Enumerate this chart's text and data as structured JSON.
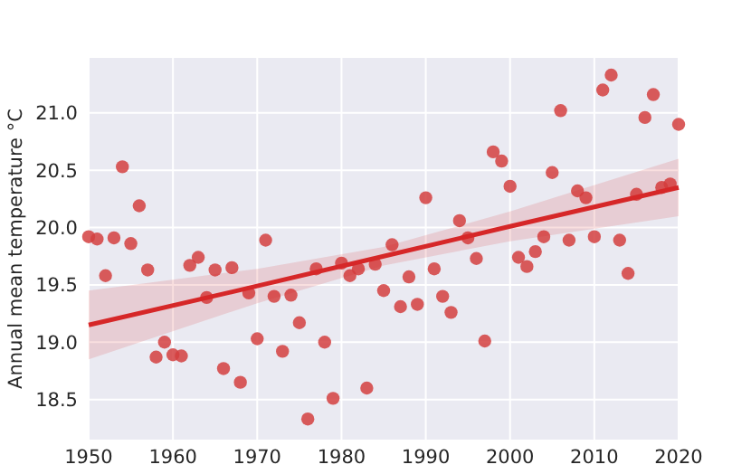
{
  "chart_data": {
    "type": "scatter",
    "ylabel": "Annual mean temperature °C",
    "xlim": [
      1950,
      2020
    ],
    "ylim": [
      18.15,
      21.48
    ],
    "xticks": [
      1950,
      1960,
      1970,
      1980,
      1990,
      2000,
      2010,
      2020
    ],
    "yticks": [
      18.5,
      {
        "value": 19,
        "label": "19.0"
      },
      19.5,
      {
        "value": 20,
        "label": "20.0"
      },
      20.5,
      {
        "value": 21,
        "label": "21.0"
      }
    ],
    "grid": true,
    "marker": "circle",
    "series": [
      {
        "color": "#d43f3f",
        "x": [
          1950,
          1951,
          1952,
          1953,
          1954,
          1955,
          1956,
          1957,
          1958,
          1959,
          1960,
          1961,
          1962,
          1963,
          1964,
          1965,
          1966,
          1967,
          1968,
          1969,
          1970,
          1971,
          1972,
          1973,
          1974,
          1975,
          1976,
          1977,
          1978,
          1979,
          1980,
          1981,
          1982,
          1983,
          1984,
          1985,
          1986,
          1987,
          1988,
          1989,
          1990,
          1991,
          1992,
          1993,
          1994,
          1995,
          1996,
          1997,
          1998,
          1999,
          2000,
          2001,
          2002,
          2003,
          2004,
          2005,
          2006,
          2007,
          2008,
          2009,
          2010,
          2011,
          2012,
          2013,
          2014,
          2015,
          2016,
          2017,
          2018,
          2019,
          2020
        ],
        "values": [
          19.92,
          19.9,
          19.58,
          19.91,
          20.53,
          19.86,
          20.19,
          19.63,
          18.87,
          19.0,
          18.89,
          18.88,
          19.67,
          19.74,
          19.39,
          19.63,
          18.77,
          19.65,
          18.65,
          19.43,
          19.03,
          19.89,
          19.4,
          18.92,
          19.41,
          19.17,
          18.33,
          19.64,
          19.0,
          18.51,
          19.69,
          19.58,
          19.64,
          18.6,
          19.68,
          19.45,
          19.85,
          19.31,
          19.57,
          19.33,
          20.26,
          19.64,
          19.4,
          19.26,
          20.06,
          19.91,
          19.73,
          19.01,
          20.66,
          20.58,
          20.36,
          19.74,
          19.66,
          19.79,
          19.92,
          20.48,
          21.02,
          19.89,
          20.32,
          20.26,
          19.92,
          21.2,
          21.33,
          19.89,
          19.6,
          20.29,
          20.96,
          21.16,
          20.35,
          20.38,
          20.9
        ]
      },
      {
        "type": "line",
        "color": "#d62728",
        "x": [
          1950,
          1970,
          1985,
          2000,
          2020
        ],
        "values": [
          19.15,
          19.49,
          19.75,
          20.01,
          20.35
        ],
        "lower": [
          18.85,
          19.34,
          19.67,
          19.88,
          20.1
        ],
        "upper": [
          19.45,
          19.64,
          19.83,
          20.14,
          20.6
        ],
        "marker": "none"
      }
    ]
  }
}
